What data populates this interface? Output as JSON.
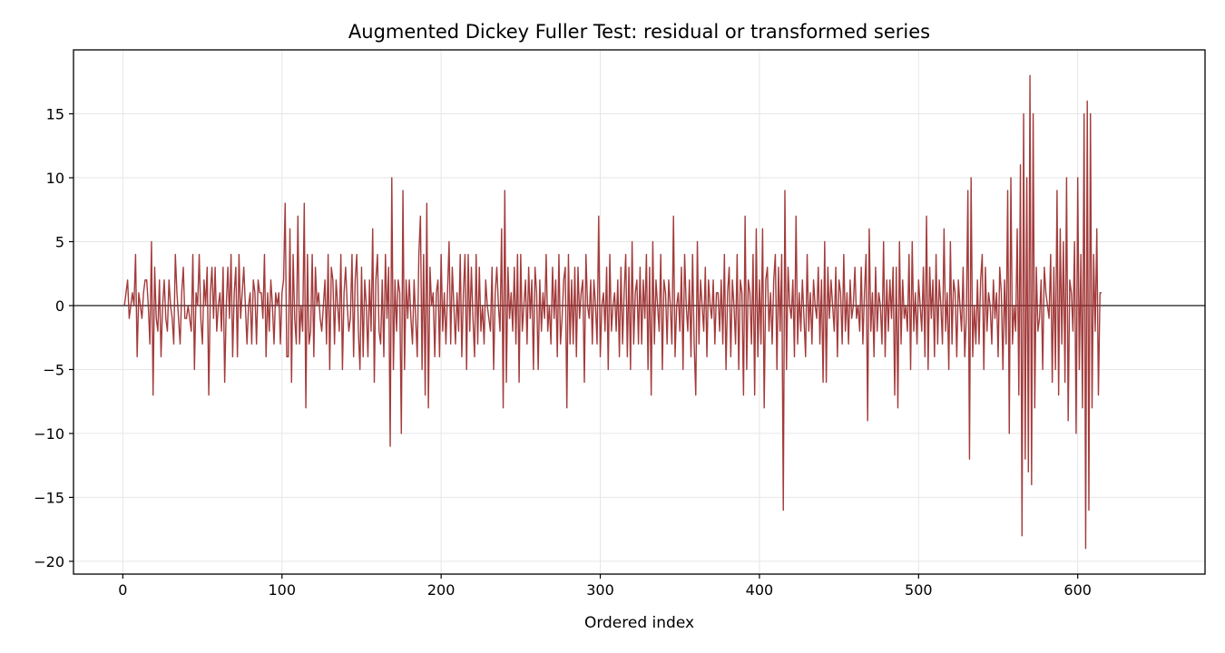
{
  "chart_data": {
    "type": "line",
    "title": "Augmented Dickey Fuller Test: residual or transformed series",
    "xlabel": "Ordered index",
    "ylabel": "",
    "xlim": [
      -31,
      680
    ],
    "ylim": [
      -21,
      20
    ],
    "xticks": [
      0,
      100,
      200,
      300,
      400,
      500,
      600
    ],
    "yticks": [
      -20,
      -15,
      -10,
      -5,
      0,
      5,
      10,
      15
    ],
    "xtick_labels": [
      "0",
      "100",
      "200",
      "300",
      "400",
      "500",
      "600"
    ],
    "ytick_labels": [
      "−20",
      "−15",
      "−10",
      "−5",
      "0",
      "5",
      "10",
      "15"
    ],
    "grid": true,
    "zero_line": true,
    "colors": {
      "series": "#9b2a2a",
      "zero_line": "#000000",
      "grid": "#e6e6e6"
    },
    "series": [
      {
        "x_start": 1,
        "values": [
          0,
          1,
          2,
          -1,
          0,
          1,
          0,
          4,
          -4,
          1,
          0,
          -1,
          1,
          2,
          2,
          0,
          -3,
          5,
          -7,
          3,
          -1,
          -2,
          2,
          -4,
          0,
          2,
          -1,
          -2,
          2,
          0,
          -1,
          -3,
          4,
          1,
          -1,
          -3,
          1,
          3,
          -1,
          -1,
          0,
          -1,
          -2,
          4,
          -5,
          1,
          0,
          4,
          -1,
          -3,
          2,
          0,
          3,
          -7,
          1,
          3,
          -1,
          3,
          -2,
          0,
          1,
          -2,
          3,
          -6,
          0,
          3,
          -1,
          4,
          -4,
          1,
          3,
          -4,
          4,
          -1,
          1,
          3,
          0,
          -3,
          0,
          1,
          -3,
          2,
          1,
          -3,
          2,
          1,
          1,
          -1,
          4,
          -4,
          1,
          -2,
          2,
          0,
          -3,
          1,
          0,
          1,
          -3,
          1,
          2,
          8,
          -4,
          -4,
          6,
          -6,
          4,
          -1,
          -3,
          7,
          -3,
          0,
          -2,
          8,
          -8,
          4,
          -3,
          -2,
          4,
          -4,
          3,
          0,
          1,
          -1,
          -2,
          0,
          2,
          -3,
          4,
          -5,
          3,
          2,
          -3,
          2,
          0,
          -2,
          4,
          -5,
          1,
          3,
          0,
          -2,
          -1,
          4,
          -4,
          2,
          4,
          -2,
          -5,
          3,
          -4,
          2,
          0,
          -4,
          2,
          -2,
          6,
          -6,
          2,
          4,
          -2,
          -3,
          2,
          -4,
          4,
          -1,
          3,
          -11,
          10,
          -5,
          2,
          -2,
          2,
          1,
          -10,
          9,
          -5,
          2,
          -1,
          2,
          -1,
          -3,
          2,
          -1,
          -4,
          4,
          7,
          -5,
          4,
          -7,
          8,
          -8,
          3,
          0,
          1,
          -4,
          1,
          2,
          -4,
          4,
          -2,
          1,
          -3,
          1,
          5,
          -3,
          3,
          0,
          -3,
          1,
          -2,
          4,
          -4,
          1,
          4,
          -5,
          4,
          -2,
          3,
          -1,
          -4,
          4,
          -3,
          3,
          -2,
          0,
          -3,
          2,
          0,
          -1,
          -2,
          3,
          -5,
          1,
          3,
          0,
          -2,
          6,
          -8,
          9,
          -6,
          3,
          -1,
          1,
          -2,
          3,
          -3,
          4,
          -6,
          4,
          -2,
          0,
          2,
          -3,
          3,
          -1,
          2,
          -5,
          3,
          1,
          -5,
          2,
          -2,
          1,
          -1,
          4,
          -2,
          0,
          -3,
          3,
          -1,
          2,
          -4,
          4,
          -3,
          -1,
          2,
          3,
          -8,
          4,
          -3,
          2,
          -3,
          3,
          -4,
          3,
          -1,
          1,
          2,
          -6,
          4,
          0,
          -1,
          2,
          -3,
          2,
          0,
          -3,
          7,
          -4,
          0,
          1,
          -2,
          3,
          -5,
          4,
          -2,
          0,
          1,
          -2,
          2,
          -4,
          3,
          -3,
          1,
          4,
          -4,
          3,
          -5,
          5,
          -3,
          1,
          2,
          -3,
          3,
          -3,
          2,
          -1,
          4,
          -5,
          3,
          -7,
          5,
          -3,
          2,
          0,
          -2,
          4,
          -5,
          2,
          1,
          -3,
          2,
          0,
          -3,
          7,
          -4,
          0,
          1,
          -2,
          3,
          -5,
          4,
          0,
          -2,
          2,
          -4,
          4,
          -3,
          -7,
          5,
          -3,
          2,
          0,
          -2,
          3,
          -4,
          2,
          0,
          -1,
          2,
          -3,
          1,
          1,
          -2,
          2,
          -3,
          4,
          -5,
          1,
          3,
          -4,
          2,
          0,
          -3,
          4,
          -5,
          2,
          1,
          -7,
          7,
          -5,
          2,
          1,
          -3,
          4,
          -7,
          6,
          -4,
          2,
          -3,
          6,
          -8,
          2,
          3,
          -2,
          1,
          -3,
          2,
          4,
          -5,
          3,
          -2,
          4,
          -16,
          9,
          -5,
          3,
          0,
          -1,
          2,
          -4,
          7,
          -3,
          1,
          -2,
          2,
          -1,
          -4,
          4,
          -2,
          1,
          -3,
          2,
          0,
          -1,
          3,
          -3,
          2,
          -6,
          5,
          -6,
          3,
          -1,
          2,
          0,
          -2,
          3,
          -4,
          2,
          1,
          -3,
          4,
          -2,
          1,
          -3,
          2,
          -1,
          0,
          3,
          -1,
          0,
          -2,
          3,
          -3,
          1,
          4,
          -9,
          6,
          -2,
          1,
          -4,
          3,
          -2,
          1,
          0,
          -3,
          5,
          -4,
          2,
          -2,
          2,
          -1,
          3,
          -7,
          3,
          -8,
          5,
          -3,
          2,
          -1,
          0,
          -2,
          4,
          -5,
          5,
          -2,
          1,
          -3,
          2,
          0,
          -2,
          3,
          -4,
          7,
          -5,
          3,
          -1,
          2,
          -4,
          4,
          -3,
          2,
          0,
          -3,
          6,
          -2,
          1,
          -5,
          5,
          -3,
          2,
          1,
          -4,
          2,
          0,
          -2,
          3,
          -4,
          -1,
          9,
          -12,
          10,
          -4,
          0,
          -3,
          2,
          -3,
          2,
          4,
          -5,
          3,
          -2,
          1,
          0,
          -3,
          2,
          -1,
          1,
          -4,
          3,
          1,
          -5,
          2,
          -3,
          9,
          -10,
          10,
          -3,
          0,
          -2,
          6,
          -7,
          11,
          -18,
          15,
          -12,
          10,
          -13,
          18,
          -14,
          15,
          -8,
          3,
          -2,
          -1,
          2,
          -5,
          3,
          1,
          0,
          -1,
          4,
          -6,
          3,
          -5,
          9,
          -7,
          6,
          -3,
          5,
          -6,
          10,
          -9,
          2,
          1,
          -2,
          5,
          -10,
          10,
          -5,
          4,
          -8,
          15,
          -19,
          16,
          -16,
          15,
          -8,
          4,
          -2,
          6,
          -7,
          1,
          1
        ]
      }
    ]
  }
}
